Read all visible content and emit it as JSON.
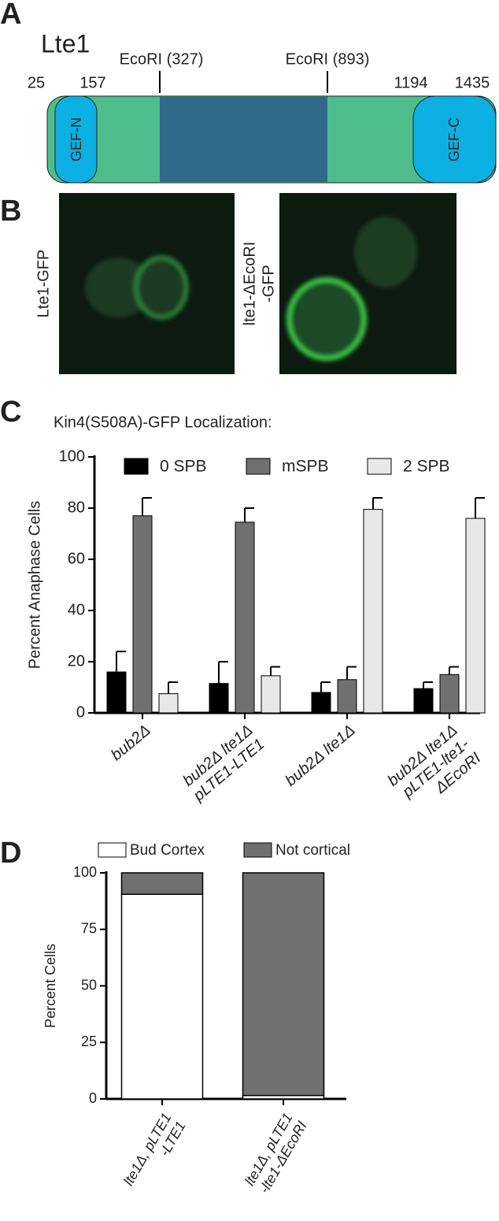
{
  "panel_labels": [
    "A",
    "B",
    "C",
    "D"
  ],
  "diagram": {
    "protein": "Lte1",
    "sites": [
      "EcoRI (327)",
      "EcoRI (893)"
    ],
    "positions": [
      "25",
      "157",
      "1194",
      "1435"
    ],
    "domains": [
      "GEF-N",
      "GEF-C"
    ]
  },
  "images": {
    "labels": [
      [
        "Lte1-GFP"
      ],
      [
        "lte1-ΔEcoRI",
        "-GFP"
      ]
    ]
  },
  "chart_data": [
    {
      "type": "bar",
      "title": "Kin4(S508A)-GFP Localization:",
      "y_label": "Percent Anaphase Cells",
      "categories": [
        [
          "bub2Δ"
        ],
        [
          "bub2Δ lte1Δ",
          "pLTE1-LTE1"
        ],
        [
          "bub2Δ lte1Δ"
        ],
        [
          "bub2Δ lte1Δ",
          "pLTE1-lte1-",
          "ΔEcoRI"
        ]
      ],
      "series": [
        {
          "name": "0 SPB",
          "color": "#000000",
          "values": [
            16,
            11.5,
            8,
            9.5
          ],
          "errors": [
            8,
            8.5,
            4,
            2.5
          ]
        },
        {
          "name": "mSPB",
          "color": "#707070",
          "values": [
            77,
            74.5,
            13,
            15
          ],
          "errors": [
            7,
            5.5,
            5,
            3
          ]
        },
        {
          "name": "2 SPB",
          "color": "#e8e8e8",
          "values": [
            7.5,
            14.5,
            79.5,
            76
          ],
          "errors": [
            4.5,
            3.5,
            4.5,
            8
          ]
        }
      ],
      "ylim": [
        0,
        100
      ],
      "yticks": [
        0,
        20,
        40,
        60,
        80,
        100
      ]
    },
    {
      "type": "stacked_bar",
      "y_label": "Percent Cells",
      "categories": [
        [
          "lte1Δ, pLTE1",
          "-LTE1"
        ],
        [
          "lte1Δ, pLTE1",
          "-lte1-ΔEcoRI"
        ]
      ],
      "series": [
        {
          "name": "Bud Cortex",
          "color": "#ffffff",
          "values": [
            90.5,
            1.5
          ]
        },
        {
          "name": "Not cortical",
          "color": "#707070",
          "values": [
            9.5,
            98.5
          ]
        }
      ],
      "ylim": [
        0,
        100
      ],
      "yticks": [
        0,
        25,
        50,
        75,
        100
      ]
    }
  ]
}
